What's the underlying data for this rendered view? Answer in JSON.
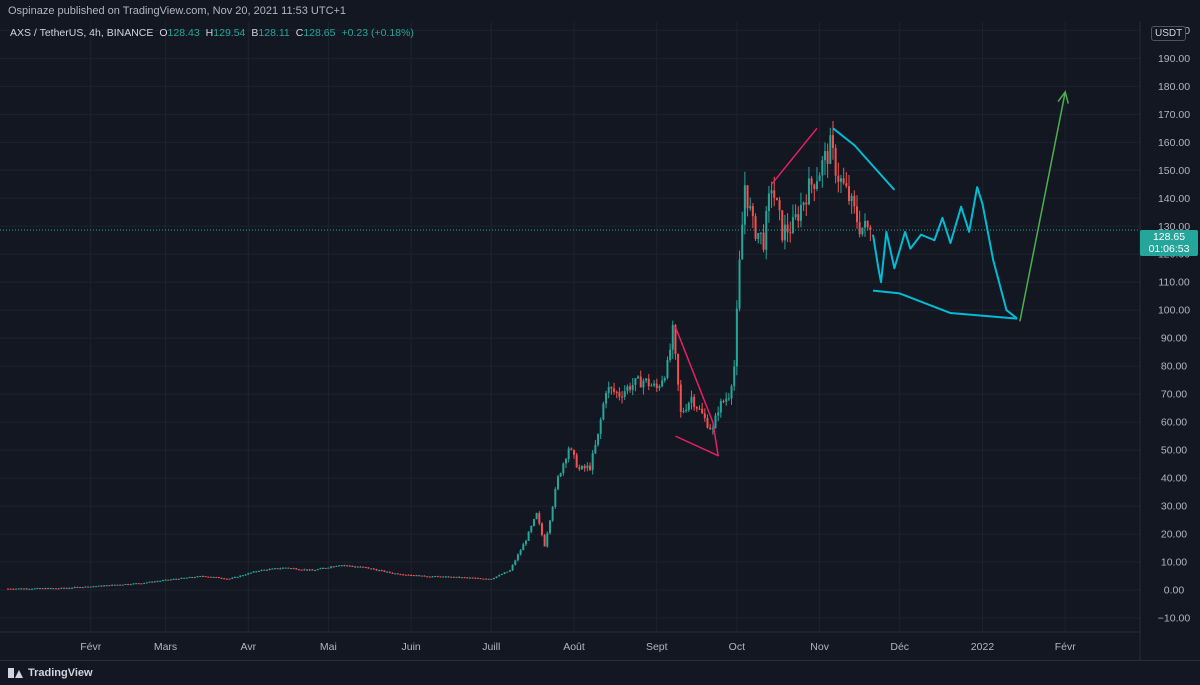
{
  "publisher_line": "Ospinaze published on TradingView.com, Nov 20, 2021 11:53 UTC+1",
  "legend": {
    "symbol": "AXS / TetherUS, 4h, BINANCE",
    "open_label": "O",
    "open": "128.43",
    "high_label": "H",
    "high": "129.54",
    "low_label": "B",
    "low": "128.11",
    "close_label": "C",
    "close": "128.65",
    "change": "+0.23 (+0.18%)"
  },
  "currency_badge": "USDT",
  "last_price": {
    "price": "128.65",
    "countdown": "01:06:53"
  },
  "branding": "TradingView",
  "colors": {
    "background": "#131722",
    "up": "#26a69a",
    "down": "#ef5350",
    "grid": "#1e222d",
    "axis_text": "#b2b5be",
    "pink_drawing": "#e91e63",
    "cyan_drawing": "#00bcd4",
    "green_arrow": "#4caf50",
    "last_price_line": "#26a69a"
  },
  "chart_data": {
    "type": "candlestick",
    "symbol": "AXS / TetherUS",
    "interval": "4h",
    "exchange": "BINANCE",
    "ylim": [
      -15,
      203
    ],
    "y_ticks": [
      -10,
      0,
      10,
      20,
      30,
      40,
      50,
      60,
      70,
      80,
      90,
      100,
      110,
      120,
      130,
      140,
      150,
      160,
      170,
      180,
      190,
      200
    ],
    "y_tick_labels": [
      "−10.00",
      "0.00",
      "10.00",
      "20.00",
      "30.00",
      "40.00",
      "50.00",
      "60.00",
      "70.00",
      "80.00",
      "90.00",
      "100.00",
      "110.00",
      "120.00",
      "130.00",
      "140.00",
      "150.00",
      "160.00",
      "170.00",
      "180.00",
      "190.00",
      "200.00"
    ],
    "x_range": [
      "2021-01-01",
      "2022-03-01"
    ],
    "x_ticks": [
      {
        "date": "2021-02-01",
        "label": "Févr"
      },
      {
        "date": "2021-03-01",
        "label": "Mars"
      },
      {
        "date": "2021-04-01",
        "label": "Avr"
      },
      {
        "date": "2021-05-01",
        "label": "Mai"
      },
      {
        "date": "2021-06-01",
        "label": "Juin"
      },
      {
        "date": "2021-07-01",
        "label": "Juill"
      },
      {
        "date": "2021-08-01",
        "label": "Août"
      },
      {
        "date": "2021-09-01",
        "label": "Sept"
      },
      {
        "date": "2021-10-01",
        "label": "Oct"
      },
      {
        "date": "2021-11-01",
        "label": "Nov"
      },
      {
        "date": "2021-12-01",
        "label": "Déc"
      },
      {
        "date": "2022-01-01",
        "label": "2022"
      },
      {
        "date": "2022-02-01",
        "label": "Févr"
      }
    ],
    "grid": true,
    "last_price": 128.65,
    "price_path": [
      [
        "2021-01-01",
        0.5
      ],
      [
        "2021-01-20",
        0.6
      ],
      [
        "2021-02-05",
        1.5
      ],
      [
        "2021-02-20",
        2.5
      ],
      [
        "2021-03-05",
        4
      ],
      [
        "2021-03-15",
        5
      ],
      [
        "2021-03-25",
        4
      ],
      [
        "2021-04-05",
        7
      ],
      [
        "2021-04-15",
        8
      ],
      [
        "2021-04-25",
        7
      ],
      [
        "2021-05-05",
        9
      ],
      [
        "2021-05-15",
        8
      ],
      [
        "2021-05-25",
        6
      ],
      [
        "2021-06-05",
        5
      ],
      [
        "2021-06-20",
        4.5
      ],
      [
        "2021-07-01",
        4
      ],
      [
        "2021-07-08",
        7
      ],
      [
        "2021-07-14",
        18
      ],
      [
        "2021-07-18",
        27
      ],
      [
        "2021-07-21",
        16
      ],
      [
        "2021-07-26",
        40
      ],
      [
        "2021-07-30",
        51
      ],
      [
        "2021-08-03",
        43
      ],
      [
        "2021-08-07",
        44
      ],
      [
        "2021-08-10",
        55
      ],
      [
        "2021-08-13",
        72
      ],
      [
        "2021-08-18",
        70
      ],
      [
        "2021-08-22",
        73
      ],
      [
        "2021-08-27",
        75
      ],
      [
        "2021-09-01",
        72
      ],
      [
        "2021-09-05",
        80
      ],
      [
        "2021-09-07",
        92
      ],
      [
        "2021-09-10",
        63
      ],
      [
        "2021-09-14",
        69
      ],
      [
        "2021-09-19",
        61
      ],
      [
        "2021-09-22",
        57
      ],
      [
        "2021-09-24",
        65
      ],
      [
        "2021-09-28",
        70
      ],
      [
        "2021-09-30",
        80
      ],
      [
        "2021-10-02",
        116
      ],
      [
        "2021-10-04",
        145
      ],
      [
        "2021-10-07",
        130
      ],
      [
        "2021-10-11",
        125
      ],
      [
        "2021-10-14",
        145
      ],
      [
        "2021-10-18",
        128
      ],
      [
        "2021-10-22",
        130
      ],
      [
        "2021-10-27",
        142
      ],
      [
        "2021-11-01",
        150
      ],
      [
        "2021-11-05",
        158
      ],
      [
        "2021-11-08",
        148
      ],
      [
        "2021-11-12",
        140
      ],
      [
        "2021-11-16",
        130
      ],
      [
        "2021-11-20",
        128.65
      ]
    ]
  },
  "drawings": [
    {
      "color": "pink",
      "points": [
        [
          "2021-09-08",
          94
        ],
        [
          "2021-09-22",
          60
        ],
        [
          "2021-09-24",
          48
        ],
        [
          "2021-09-08",
          55
        ]
      ]
    },
    {
      "color": "pink",
      "points": [
        [
          "2021-10-14",
          145
        ],
        [
          "2021-10-31",
          165
        ]
      ]
    },
    {
      "color": "cyan",
      "points": [
        [
          "2021-11-06",
          165
        ],
        [
          "2021-11-14",
          159
        ],
        [
          "2021-11-29",
          143
        ]
      ]
    },
    {
      "color": "cyan",
      "points": [
        [
          "2021-11-21",
          127
        ],
        [
          "2021-11-23",
          115
        ],
        [
          "2021-11-24",
          110
        ],
        [
          "2021-11-26",
          128
        ],
        [
          "2021-11-29",
          115
        ],
        [
          "2021-12-03",
          128
        ],
        [
          "2021-12-05",
          122
        ],
        [
          "2021-12-09",
          127
        ],
        [
          "2021-12-14",
          125
        ],
        [
          "2021-12-17",
          133
        ],
        [
          "2021-12-20",
          124
        ],
        [
          "2021-12-24",
          137
        ],
        [
          "2021-12-27",
          128
        ],
        [
          "2021-12-30",
          144
        ],
        [
          "2022-01-01",
          138
        ],
        [
          "2022-01-05",
          118
        ],
        [
          "2022-01-10",
          100
        ],
        [
          "2022-01-14",
          97
        ]
      ]
    },
    {
      "color": "cyan",
      "points": [
        [
          "2021-11-21",
          107
        ],
        [
          "2021-12-01",
          106
        ],
        [
          "2021-12-20",
          99
        ],
        [
          "2022-01-14",
          97
        ]
      ]
    },
    {
      "color": "green",
      "points": [
        [
          "2022-01-15",
          96
        ],
        [
          "2022-02-01",
          178
        ]
      ],
      "arrow": true
    }
  ]
}
